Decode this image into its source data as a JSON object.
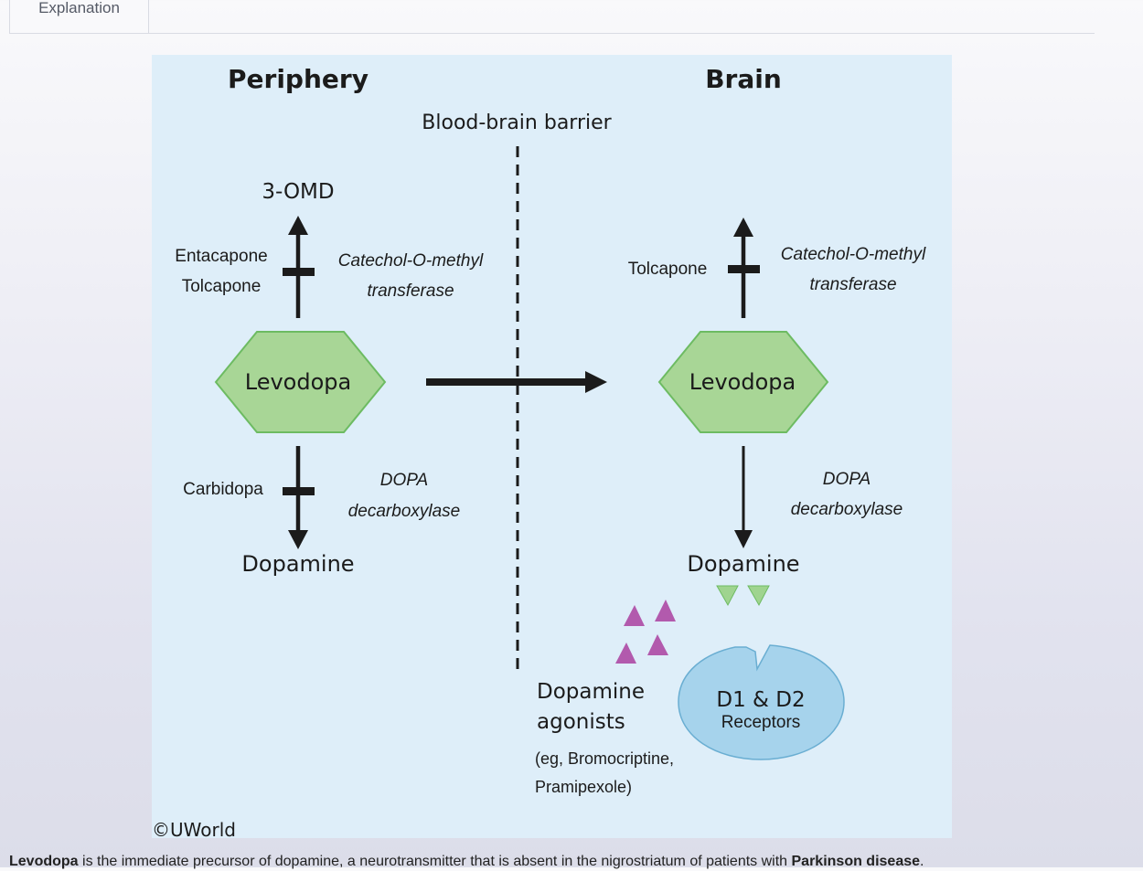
{
  "tabs": {
    "explanation_label": "Explanation"
  },
  "figure": {
    "left_title": "Periphery",
    "right_title": "Brain",
    "barrier_label": "Blood-brain barrier",
    "periphery": {
      "omd_label": "3-OMD",
      "comt_inhibitors_1": "Entacapone",
      "comt_inhibitors_2": "Tolcapone",
      "comt_enzyme_1": "Catechol-O-methyl",
      "comt_enzyme_2": "transferase",
      "levodopa_label": "Levodopa",
      "carbidopa_label": "Carbidopa",
      "ddc_enzyme_1": "DOPA",
      "ddc_enzyme_2": "decarboxylase",
      "dopamine_label": "Dopamine"
    },
    "brain": {
      "comt_inhibitor": "Tolcapone",
      "comt_enzyme_1": "Catechol-O-methyl",
      "comt_enzyme_2": "transferase",
      "levodopa_label": "Levodopa",
      "ddc_enzyme_1": "DOPA",
      "ddc_enzyme_2": "decarboxylase",
      "dopamine_label": "Dopamine",
      "agonists_1": "Dopamine",
      "agonists_2": "agonists",
      "agonists_eg_1": "(eg, Bromocriptine,",
      "agonists_eg_2": "Pramipexole)",
      "receptor_1": "D1 & D2",
      "receptor_2": "Receptors"
    },
    "copyright": "©UWorld",
    "colors": {
      "background": "#deeef9",
      "levodopa_fill": "#a8d696",
      "levodopa_stroke": "#6dbb62",
      "agonist_triangle": "#b25aad",
      "dopamine_triangle": "#9fd48f",
      "receptor_fill": "#a6d3ec",
      "receptor_stroke": "#6aaed2"
    }
  },
  "caption": {
    "bold_1": "Levodopa",
    "text_1": " is the immediate precursor of dopamine, a neurotransmitter that is absent in the nigrostriatum of patients with ",
    "bold_2": "Parkinson disease",
    "text_2": "."
  }
}
